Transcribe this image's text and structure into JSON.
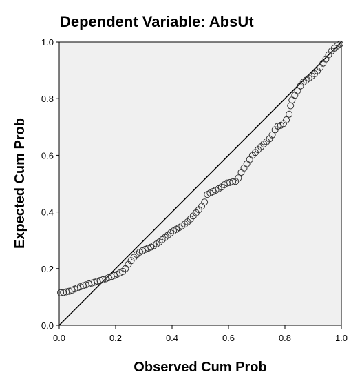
{
  "chart_data": {
    "type": "scatter",
    "title": "Dependent Variable: AbsUt",
    "xlabel": "Observed Cum Prob",
    "ylabel": "Expected Cum Prob",
    "xlim": [
      0,
      1
    ],
    "ylim": [
      0,
      1
    ],
    "x_ticks": [
      "0.0",
      "0.2",
      "0.4",
      "0.6",
      "0.8",
      "1.0"
    ],
    "y_ticks": [
      "0.0",
      "0.2",
      "0.4",
      "0.6",
      "0.8",
      "1.0"
    ],
    "grid": false,
    "reference_line": {
      "from": [
        0,
        0
      ],
      "to": [
        1,
        1
      ]
    },
    "colors": {
      "plot_background": "#f0f0f0",
      "marker_stroke": "#333333",
      "line": "#000000"
    },
    "points": [
      [
        0.005,
        0.115
      ],
      [
        0.015,
        0.116
      ],
      [
        0.025,
        0.118
      ],
      [
        0.035,
        0.12
      ],
      [
        0.045,
        0.124
      ],
      [
        0.055,
        0.128
      ],
      [
        0.065,
        0.132
      ],
      [
        0.075,
        0.136
      ],
      [
        0.085,
        0.14
      ],
      [
        0.095,
        0.143
      ],
      [
        0.105,
        0.146
      ],
      [
        0.115,
        0.149
      ],
      [
        0.125,
        0.152
      ],
      [
        0.135,
        0.155
      ],
      [
        0.145,
        0.158
      ],
      [
        0.155,
        0.161
      ],
      [
        0.165,
        0.164
      ],
      [
        0.175,
        0.168
      ],
      [
        0.185,
        0.172
      ],
      [
        0.195,
        0.176
      ],
      [
        0.205,
        0.18
      ],
      [
        0.215,
        0.185
      ],
      [
        0.225,
        0.19
      ],
      [
        0.235,
        0.2
      ],
      [
        0.245,
        0.215
      ],
      [
        0.255,
        0.228
      ],
      [
        0.265,
        0.24
      ],
      [
        0.275,
        0.25
      ],
      [
        0.285,
        0.258
      ],
      [
        0.295,
        0.263
      ],
      [
        0.305,
        0.268
      ],
      [
        0.315,
        0.272
      ],
      [
        0.325,
        0.276
      ],
      [
        0.335,
        0.281
      ],
      [
        0.345,
        0.287
      ],
      [
        0.355,
        0.294
      ],
      [
        0.365,
        0.302
      ],
      [
        0.375,
        0.31
      ],
      [
        0.385,
        0.318
      ],
      [
        0.395,
        0.326
      ],
      [
        0.405,
        0.333
      ],
      [
        0.415,
        0.339
      ],
      [
        0.425,
        0.345
      ],
      [
        0.435,
        0.351
      ],
      [
        0.445,
        0.357
      ],
      [
        0.455,
        0.365
      ],
      [
        0.465,
        0.375
      ],
      [
        0.475,
        0.386
      ],
      [
        0.485,
        0.397
      ],
      [
        0.495,
        0.408
      ],
      [
        0.505,
        0.42
      ],
      [
        0.515,
        0.435
      ],
      [
        0.525,
        0.462
      ],
      [
        0.535,
        0.467
      ],
      [
        0.545,
        0.472
      ],
      [
        0.555,
        0.477
      ],
      [
        0.565,
        0.482
      ],
      [
        0.575,
        0.488
      ],
      [
        0.585,
        0.496
      ],
      [
        0.595,
        0.502
      ],
      [
        0.605,
        0.504
      ],
      [
        0.615,
        0.506
      ],
      [
        0.625,
        0.508
      ],
      [
        0.635,
        0.52
      ],
      [
        0.645,
        0.54
      ],
      [
        0.655,
        0.555
      ],
      [
        0.665,
        0.57
      ],
      [
        0.675,
        0.585
      ],
      [
        0.685,
        0.6
      ],
      [
        0.695,
        0.61
      ],
      [
        0.705,
        0.62
      ],
      [
        0.715,
        0.63
      ],
      [
        0.725,
        0.64
      ],
      [
        0.735,
        0.648
      ],
      [
        0.745,
        0.658
      ],
      [
        0.755,
        0.672
      ],
      [
        0.765,
        0.69
      ],
      [
        0.775,
        0.703
      ],
      [
        0.785,
        0.706
      ],
      [
        0.795,
        0.712
      ],
      [
        0.805,
        0.725
      ],
      [
        0.815,
        0.745
      ],
      [
        0.82,
        0.775
      ],
      [
        0.825,
        0.795
      ],
      [
        0.835,
        0.812
      ],
      [
        0.845,
        0.828
      ],
      [
        0.855,
        0.845
      ],
      [
        0.865,
        0.858
      ],
      [
        0.875,
        0.865
      ],
      [
        0.885,
        0.872
      ],
      [
        0.895,
        0.88
      ],
      [
        0.905,
        0.888
      ],
      [
        0.915,
        0.898
      ],
      [
        0.925,
        0.91
      ],
      [
        0.935,
        0.925
      ],
      [
        0.945,
        0.94
      ],
      [
        0.955,
        0.955
      ],
      [
        0.965,
        0.968
      ],
      [
        0.975,
        0.978
      ],
      [
        0.985,
        0.986
      ],
      [
        0.995,
        0.993
      ]
    ]
  }
}
